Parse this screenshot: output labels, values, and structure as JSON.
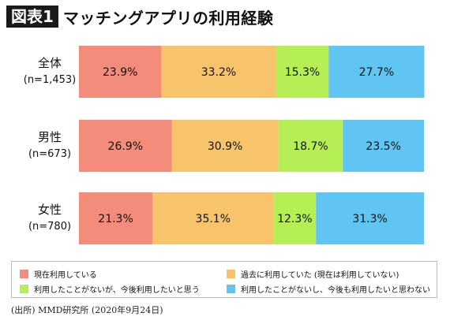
{
  "figure_label": "図表1",
  "title": "マッチングアプリの利用経験",
  "source": "(出所) MMD研究所 (2020年9月24日)",
  "colors": {
    "current": "#f38c7a",
    "past": "#f7c46c",
    "never_want": "#b6ef55",
    "never_not_want": "#60c5f2"
  },
  "chart_data": {
    "type": "bar",
    "orientation": "horizontal-stacked-100",
    "categories": [
      {
        "label": "全体",
        "sub": "(n=1,453)"
      },
      {
        "label": "男性",
        "sub": "(n=673)"
      },
      {
        "label": "女性",
        "sub": "(n=780)"
      }
    ],
    "series": [
      {
        "name": "現在利用している",
        "color": "#f38c7a",
        "values": [
          23.9,
          26.9,
          21.3
        ]
      },
      {
        "name": "過去に利用していた (現在は利用していない)",
        "color": "#f7c46c",
        "values": [
          33.2,
          30.9,
          35.1
        ]
      },
      {
        "name": "利用したことがないが、今後利用したいと思う",
        "color": "#b6ef55",
        "values": [
          15.3,
          18.7,
          12.3
        ]
      },
      {
        "name": "利用したことがないし、今後も利用したいと思わない",
        "color": "#60c5f2",
        "values": [
          27.7,
          23.5,
          31.3
        ]
      }
    ],
    "value_suffix": "%",
    "xlim": [
      0,
      100
    ],
    "grid": false,
    "legend": "bottom"
  }
}
